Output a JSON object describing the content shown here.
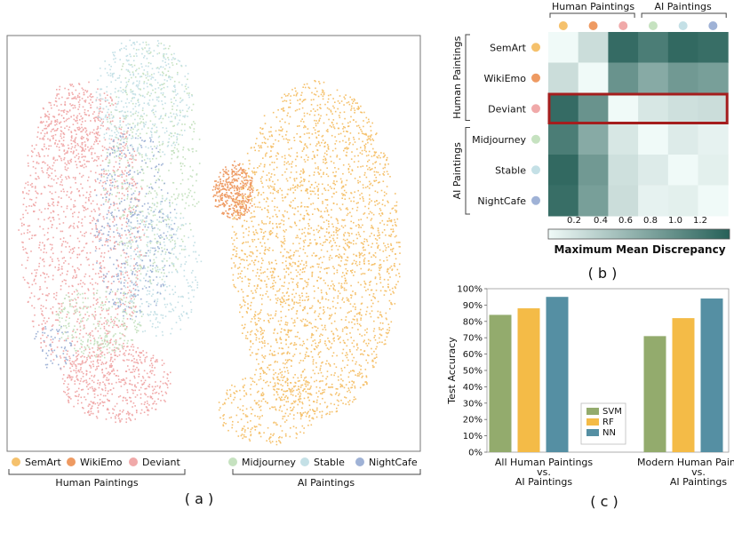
{
  "panel_labels": {
    "a": "( a )",
    "b": "( b )",
    "c": "( c )"
  },
  "colors": {
    "SemArt": "#f5c16c",
    "WikiEmo": "#ee9a62",
    "Deviant": "#f0a9a9",
    "Midjourney": "#c6e2c0",
    "Stable": "#c4e0e6",
    "NightCafe": "#9fb2d6",
    "red_box": "#a41d1d",
    "svm": "#93ab6d",
    "rf": "#f4bb47",
    "nn": "#558fa3"
  },
  "groups": {
    "human": "Human Paintings",
    "ai": "AI Paintings"
  },
  "legend_a": [
    "SemArt",
    "WikiEmo",
    "Deviant",
    "Midjourney",
    "Stable",
    "NightCafe"
  ],
  "chart_data": [
    {
      "type": "scatter",
      "panel": "a",
      "title": "",
      "series": [
        {
          "name": "SemArt"
        },
        {
          "name": "WikiEmo"
        },
        {
          "name": "Deviant"
        },
        {
          "name": "Midjourney"
        },
        {
          "name": "Stable"
        },
        {
          "name": "NightCafe"
        }
      ]
    },
    {
      "type": "heatmap",
      "panel": "b",
      "rows": [
        "SemArt",
        "WikiEmo",
        "Deviant",
        "Midjourney",
        "Stable",
        "NightCafe"
      ],
      "cols": [
        "SemArt",
        "WikiEmo",
        "Deviant",
        "Midjourney",
        "Stable",
        "NightCafe"
      ],
      "values": [
        [
          0.0,
          0.3,
          1.3,
          1.15,
          1.32,
          1.28
        ],
        [
          0.3,
          0.0,
          0.95,
          0.75,
          0.9,
          0.85
        ],
        [
          1.3,
          0.95,
          0.05,
          0.22,
          0.28,
          0.3
        ],
        [
          1.15,
          0.75,
          0.22,
          0.0,
          0.18,
          0.12
        ],
        [
          1.32,
          0.9,
          0.28,
          0.18,
          0.0,
          0.14
        ],
        [
          1.28,
          0.85,
          0.3,
          0.12,
          0.14,
          0.0
        ]
      ],
      "colorbar_ticks": [
        "0.2",
        "0.4",
        "0.6",
        "0.8",
        "1.0",
        "1.2"
      ],
      "colorbar_range": [
        0.05,
        1.4
      ],
      "colorbar_label": "Maximum Mean Discrepancy",
      "highlighted_row": "Deviant"
    },
    {
      "type": "bar",
      "panel": "c",
      "categories": [
        "All Human Paintings\nvs.\nAI Paintings",
        "Modern Human Paintings\nvs.\nAI Paintings"
      ],
      "series": [
        {
          "name": "SVM",
          "values": [
            84,
            71
          ]
        },
        {
          "name": "RF",
          "values": [
            88,
            82
          ]
        },
        {
          "name": "NN",
          "values": [
            95,
            94
          ]
        }
      ],
      "ylabel": "Test Accuracy",
      "ylim": [
        0,
        100
      ],
      "yticks": [
        "0%",
        "10%",
        "20%",
        "30%",
        "40%",
        "50%",
        "60%",
        "70%",
        "80%",
        "90%",
        "100%"
      ],
      "legend_placement": "center"
    }
  ]
}
